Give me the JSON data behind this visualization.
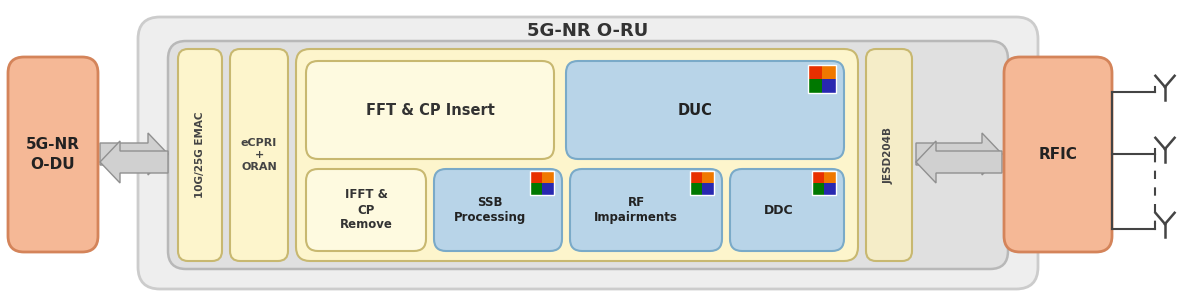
{
  "title": "5G-NR O-RU",
  "color_salmon": "#f5b896",
  "color_yellow_light": "#fdf5cc",
  "color_yellow_mid": "#f5edb0",
  "color_blue": "#b8d4e8",
  "color_outer_bg": "#eeeeee",
  "color_inner_bg": "#e0e0e0",
  "color_arrow": "#c0c0c0",
  "color_arrow_dark": "#a0a0a0",
  "text_odu": "5G-NR\nO-DU",
  "text_rfic": "RFIC",
  "text_10g": "10G/25G EMAC",
  "text_ecpri": "eCPRI\n+\nORAN",
  "text_fft": "FFT & CP Insert",
  "text_duc": "DUC",
  "text_ifft": "IFFT &\nCP\nRemove",
  "text_ssb": "SSB\nProcessing",
  "text_rf": "RF\nImpairments",
  "text_ddc": "DDC",
  "text_jesd": "JESD204B",
  "salmon_edge": "#d4845a",
  "yellow_edge": "#c8b870",
  "blue_edge": "#7aaac8"
}
